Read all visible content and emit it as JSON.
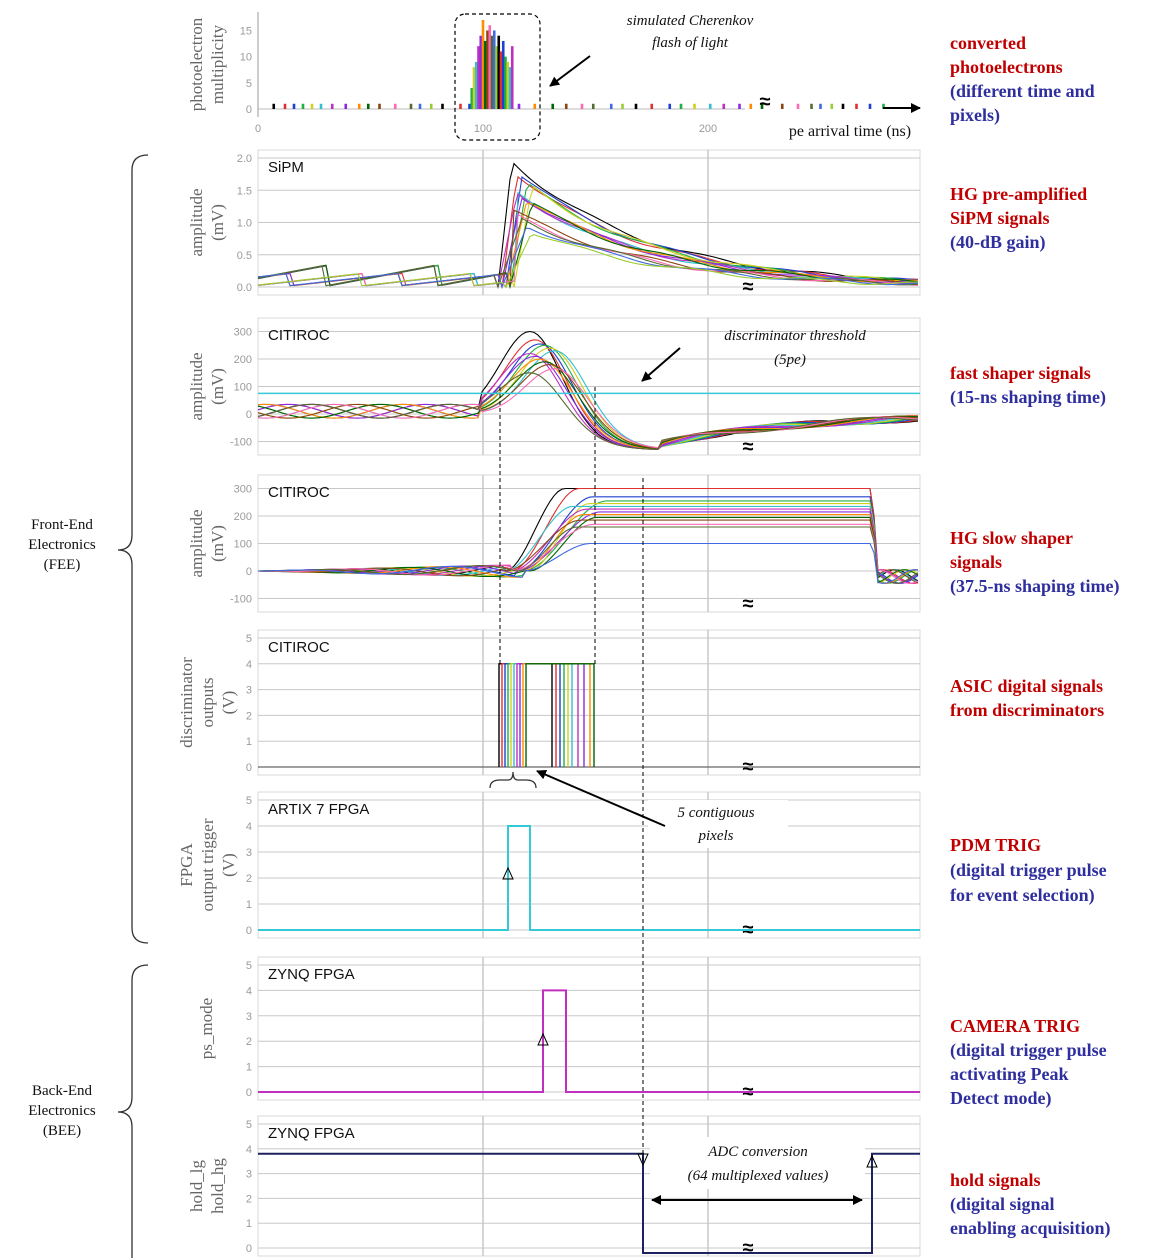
{
  "colors": {
    "red": "#c00000",
    "blue": "#2e2e9e",
    "cyan": "#33c9d6",
    "magenta": "#c030c0",
    "navy": "#1f2060",
    "grid": "#c8c8c8",
    "trace_palette": [
      "#000000",
      "#e03030",
      "#2040d0",
      "#20b040",
      "#d0d020",
      "#30c0d0",
      "#c030c0",
      "#8a2be2",
      "#ff8c00",
      "#006400",
      "#8b4513",
      "#ff69b4",
      "#556b2f",
      "#4169e1",
      "#9acd32"
    ]
  },
  "side_labels": {
    "fee": [
      "Front-End",
      "Electronics",
      "(FEE)"
    ],
    "bee": [
      "Back-End",
      "Electronics",
      "(BEE)"
    ]
  },
  "annotations": {
    "cherenkov": [
      "simulated Cherenkov",
      "flash of light"
    ],
    "threshold": [
      "discriminator threshold",
      "(5pe)"
    ],
    "contiguous": [
      "5 contiguous",
      "pixels"
    ],
    "adc": [
      "ADC conversion",
      "(64 multiplexed values)"
    ],
    "break_mark": "≈"
  },
  "descriptions": [
    {
      "red": [
        "converted",
        "photoelectrons"
      ],
      "blue": [
        "(different time and",
        "pixels)"
      ]
    },
    {
      "red": [
        "HG pre-amplified",
        "SiPM signals"
      ],
      "blue": [
        "(40-dB gain)"
      ]
    },
    {
      "red": [
        "fast shaper signals"
      ],
      "blue": [
        "(15-ns shaping time)"
      ]
    },
    {
      "red": [
        "HG slow shaper",
        "signals"
      ],
      "blue": [
        "(37.5-ns shaping time)"
      ]
    },
    {
      "red": [
        "ASIC digital signals",
        "from discriminators"
      ],
      "blue": []
    },
    {
      "red": [
        "PDM TRIG"
      ],
      "blue": [
        "(digital trigger pulse",
        "for event selection)"
      ]
    },
    {
      "red": [
        "CAMERA TRIG"
      ],
      "blue": [
        "(digital trigger pulse",
        "activating Peak",
        "Detect mode)"
      ]
    },
    {
      "red": [
        "hold signals"
      ],
      "blue": [
        "(digital signal",
        "enabling acquisition)"
      ]
    }
  ],
  "chart_data": [
    {
      "type": "bar",
      "ylabel": [
        "photoelectron",
        "multiplicity"
      ],
      "xlabel": "pe arrival time (ns)",
      "xlim": [
        0,
        300
      ],
      "ylim": [
        0,
        17
      ],
      "xticks": [
        "0",
        "100",
        "200"
      ],
      "yticks": [
        "0",
        "5",
        "10",
        "15"
      ],
      "series": [
        {
          "values": [
            [
              7,
              1
            ],
            [
              12,
              1
            ],
            [
              16,
              1
            ],
            [
              20,
              1
            ],
            [
              24,
              1
            ],
            [
              28,
              1
            ],
            [
              33,
              1
            ],
            [
              39,
              1
            ],
            [
              45,
              1
            ],
            [
              49,
              1
            ],
            [
              54,
              1
            ],
            [
              61,
              1
            ],
            [
              68,
              1
            ],
            [
              72,
              1
            ],
            [
              77,
              1
            ],
            [
              82,
              1
            ],
            [
              90,
              1
            ],
            [
              94,
              1
            ],
            [
              95,
              4
            ],
            [
              96,
              8
            ],
            [
              97,
              9
            ],
            [
              98,
              12
            ],
            [
              99,
              14
            ],
            [
              100,
              17
            ],
            [
              101,
              13
            ],
            [
              102,
              15
            ],
            [
              103,
              16
            ],
            [
              104,
              14
            ],
            [
              105,
              15
            ],
            [
              106,
              12
            ],
            [
              107,
              14
            ],
            [
              108,
              11
            ],
            [
              109,
              13
            ],
            [
              110,
              10
            ],
            [
              111,
              9
            ],
            [
              112,
              8
            ],
            [
              113,
              12
            ],
            [
              116,
              1
            ],
            [
              123,
              1
            ],
            [
              131,
              1
            ],
            [
              137,
              1
            ],
            [
              144,
              1
            ],
            [
              149,
              1
            ],
            [
              157,
              1
            ],
            [
              162,
              1
            ],
            [
              168,
              1
            ],
            [
              175,
              1
            ],
            [
              183,
              1
            ],
            [
              188,
              1
            ],
            [
              194,
              1
            ],
            [
              201,
              1
            ],
            [
              207,
              1
            ],
            [
              214,
              1
            ],
            [
              219,
              1
            ],
            [
              224,
              1
            ],
            [
              233,
              1
            ],
            [
              240,
              1
            ],
            [
              246,
              1
            ],
            [
              250,
              1
            ],
            [
              255,
              1
            ],
            [
              260,
              1
            ],
            [
              266,
              1
            ],
            [
              272,
              1
            ],
            [
              278,
              1
            ]
          ]
        }
      ]
    },
    {
      "type": "line",
      "panel_label": "SiPM",
      "ylabel": [
        "amplitude",
        "(mV)"
      ],
      "ylim": [
        0,
        2.0
      ],
      "yticks": [
        "0.0",
        "0.5",
        "1.0",
        "1.5",
        "2.0"
      ],
      "peaks": [
        1.95,
        1.75,
        1.72,
        1.6,
        1.55,
        1.5,
        1.45,
        1.4,
        1.35,
        1.3,
        1.2,
        1.1,
        1.05,
        0.95,
        0.85
      ]
    },
    {
      "type": "line",
      "panel_label": "CITIROC",
      "ylabel": [
        "amplitude",
        "(mV)"
      ],
      "ylim": [
        -120,
        320
      ],
      "yticks": [
        "-100",
        "0",
        "100",
        "200",
        "300"
      ],
      "threshold": 75,
      "peaks": [
        300,
        270,
        255,
        250,
        240,
        230,
        220,
        210,
        200,
        190,
        180,
        165,
        150
      ],
      "undershoot": -125
    },
    {
      "type": "line",
      "panel_label": "CITIROC",
      "ylabel": [
        "amplitude",
        "(mV)"
      ],
      "ylim": [
        -120,
        320
      ],
      "yticks": [
        "-100",
        "0",
        "100",
        "200",
        "300"
      ],
      "plateaus": [
        300,
        300,
        270,
        255,
        245,
        235,
        225,
        215,
        205,
        195,
        185,
        170,
        160,
        100
      ]
    },
    {
      "type": "line",
      "panel_label": "CITIROC",
      "ylabel": [
        "discriminator",
        "outputs",
        "(V)"
      ],
      "ylim": [
        0,
        5
      ],
      "yticks": [
        "0",
        "1",
        "2",
        "3",
        "4",
        "5"
      ],
      "pulse_level": 4
    },
    {
      "type": "line",
      "panel_label": "ARTIX 7 FPGA",
      "ylabel": [
        "FPGA",
        "output trigger",
        "(V)"
      ],
      "ylim": [
        0,
        5
      ],
      "yticks": [
        "0",
        "1",
        "2",
        "3",
        "4",
        "5"
      ],
      "pulse_level": 4
    },
    {
      "type": "line",
      "panel_label": "ZYNQ FPGA",
      "ylabel": [
        "ps_mode"
      ],
      "ylim": [
        0,
        5
      ],
      "yticks": [
        "0",
        "1",
        "2",
        "3",
        "4",
        "5"
      ],
      "pulse_level": 4
    },
    {
      "type": "line",
      "panel_label": "ZYNQ FPGA",
      "ylabel": [
        "hold_lg",
        "hold_hg"
      ],
      "ylim": [
        0,
        5
      ],
      "yticks": [
        "0",
        "1",
        "2",
        "3",
        "4",
        "5"
      ],
      "high_level": 3.8,
      "low_level": -0.2
    }
  ]
}
